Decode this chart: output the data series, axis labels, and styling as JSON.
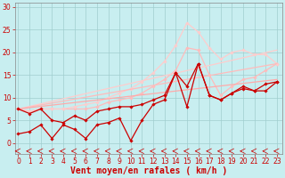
{
  "xlabel": "Vent moyen/en rafales ( km/h )",
  "background_color": "#c8eef0",
  "grid_color": "#a0cece",
  "x_ticks": [
    0,
    1,
    2,
    3,
    4,
    5,
    6,
    7,
    8,
    9,
    10,
    11,
    12,
    13,
    14,
    15,
    16,
    17,
    18,
    19,
    20,
    21,
    22,
    23
  ],
  "ylim": [
    -2.5,
    31
  ],
  "xlim": [
    -0.3,
    23.5
  ],
  "yticks": [
    0,
    5,
    10,
    15,
    20,
    25,
    30
  ],
  "lines": [
    {
      "x": [
        0,
        1,
        2,
        3,
        4,
        5,
        6,
        7,
        8,
        9,
        10,
        11,
        12,
        13,
        14,
        15,
        16,
        17,
        18,
        19,
        20,
        21,
        22,
        23
      ],
      "y": [
        7.5,
        7.0,
        7.5,
        7.5,
        7.5,
        7.5,
        7.5,
        8.0,
        9.0,
        9.5,
        10.0,
        11.0,
        12.5,
        14.0,
        16.0,
        21.0,
        20.5,
        15.0,
        10.5,
        12.5,
        14.0,
        14.5,
        16.0,
        17.5
      ],
      "color": "#ffbbbb",
      "marker": "D",
      "markersize": 1.8,
      "linewidth": 0.9,
      "alpha": 1.0
    },
    {
      "x": [
        0,
        1,
        2,
        3,
        4,
        5,
        6,
        7,
        8,
        9,
        10,
        11,
        12,
        13,
        14,
        15,
        16,
        17,
        18,
        19,
        20,
        21,
        22,
        23
      ],
      "y": [
        7.5,
        7.0,
        7.5,
        7.5,
        7.5,
        8.0,
        8.5,
        9.0,
        10.0,
        11.0,
        12.0,
        13.5,
        15.5,
        18.0,
        21.5,
        26.5,
        24.5,
        21.0,
        18.5,
        20.0,
        20.5,
        19.5,
        19.5,
        17.5
      ],
      "color": "#ffcccc",
      "marker": "D",
      "markersize": 1.8,
      "linewidth": 0.9,
      "alpha": 1.0
    },
    {
      "x": [
        0,
        23
      ],
      "y": [
        7.5,
        20.5
      ],
      "color": "#ffcccc",
      "marker": null,
      "linewidth": 0.9,
      "alpha": 1.0
    },
    {
      "x": [
        0,
        23
      ],
      "y": [
        7.5,
        17.5
      ],
      "color": "#ffbbbb",
      "marker": null,
      "linewidth": 0.9,
      "alpha": 1.0
    },
    {
      "x": [
        0,
        23
      ],
      "y": [
        7.5,
        14.0
      ],
      "color": "#ffaaaa",
      "marker": null,
      "linewidth": 0.9,
      "alpha": 1.0
    },
    {
      "x": [
        0,
        1,
        2,
        3,
        4,
        5,
        6,
        7,
        8,
        9,
        10,
        11,
        12,
        13,
        14,
        15,
        16,
        17,
        18,
        19,
        20,
        21,
        22,
        23
      ],
      "y": [
        7.5,
        6.5,
        7.5,
        5.0,
        4.5,
        6.0,
        5.0,
        7.0,
        7.5,
        8.0,
        8.0,
        8.5,
        9.5,
        10.5,
        15.5,
        12.5,
        17.5,
        10.5,
        9.5,
        11.0,
        12.0,
        11.5,
        13.0,
        13.5
      ],
      "color": "#cc0000",
      "marker": "D",
      "markersize": 1.8,
      "linewidth": 0.9,
      "alpha": 1.0
    },
    {
      "x": [
        0,
        1,
        2,
        3,
        4,
        5,
        6,
        7,
        8,
        9,
        10,
        11,
        12,
        13,
        14,
        15,
        16,
        17,
        18,
        19,
        20,
        21,
        22,
        23
      ],
      "y": [
        2.0,
        2.5,
        4.0,
        1.0,
        4.0,
        3.0,
        1.0,
        4.0,
        4.5,
        5.5,
        0.5,
        5.0,
        8.5,
        9.5,
        15.5,
        8.0,
        17.5,
        10.5,
        9.5,
        11.0,
        12.5,
        11.5,
        11.5,
        13.5
      ],
      "color": "#cc0000",
      "marker": "D",
      "markersize": 1.8,
      "linewidth": 0.9,
      "alpha": 1.0
    }
  ],
  "arrow_color": "#cc0000",
  "tick_fontsize": 5.5,
  "xlabel_fontsize": 7
}
